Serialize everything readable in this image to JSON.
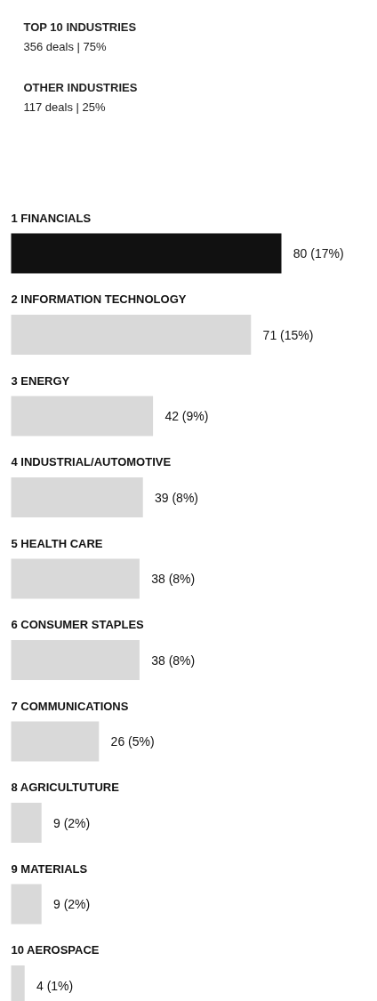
{
  "chart_data": {
    "type": "bar",
    "orientation": "horizontal",
    "annotations": [
      "TOP 10 INDUSTRIES",
      "356 deals | 75%",
      "OTHER INDUSTRIES",
      "117 deals | 25%"
    ],
    "categories": [
      "1 FINANCIALS",
      "2 INFORMATION TECHNOLOGY",
      "3 ENERGY",
      "4 INDUSTRIAL/AUTOMOTIVE",
      "5 HEALTH CARE",
      "6 CONSUMER STAPLES",
      "7 COMMUNICATIONS",
      "8 AGRICULTUTURE",
      "9 MATERIALS",
      "10 AEROSPACE"
    ],
    "values": [
      80,
      71,
      42,
      39,
      38,
      38,
      26,
      9,
      9,
      4
    ],
    "colors": [
      "#111111",
      "#d9d9d9",
      "#d9d9d9",
      "#d9d9d9",
      "#d9d9d9",
      "#d9d9d9",
      "#d9d9d9",
      "#d9d9d9",
      "#d9d9d9",
      "#d9d9d9"
    ],
    "value_labels": [
      "80 (17%)",
      "71 (15%)",
      "42 (9%)",
      "39 (8%)",
      "38 (8%)",
      "38 (8%)",
      "26 (5%)",
      "9 (2%)",
      "9 (2%)",
      "4 (1%)"
    ]
  }
}
